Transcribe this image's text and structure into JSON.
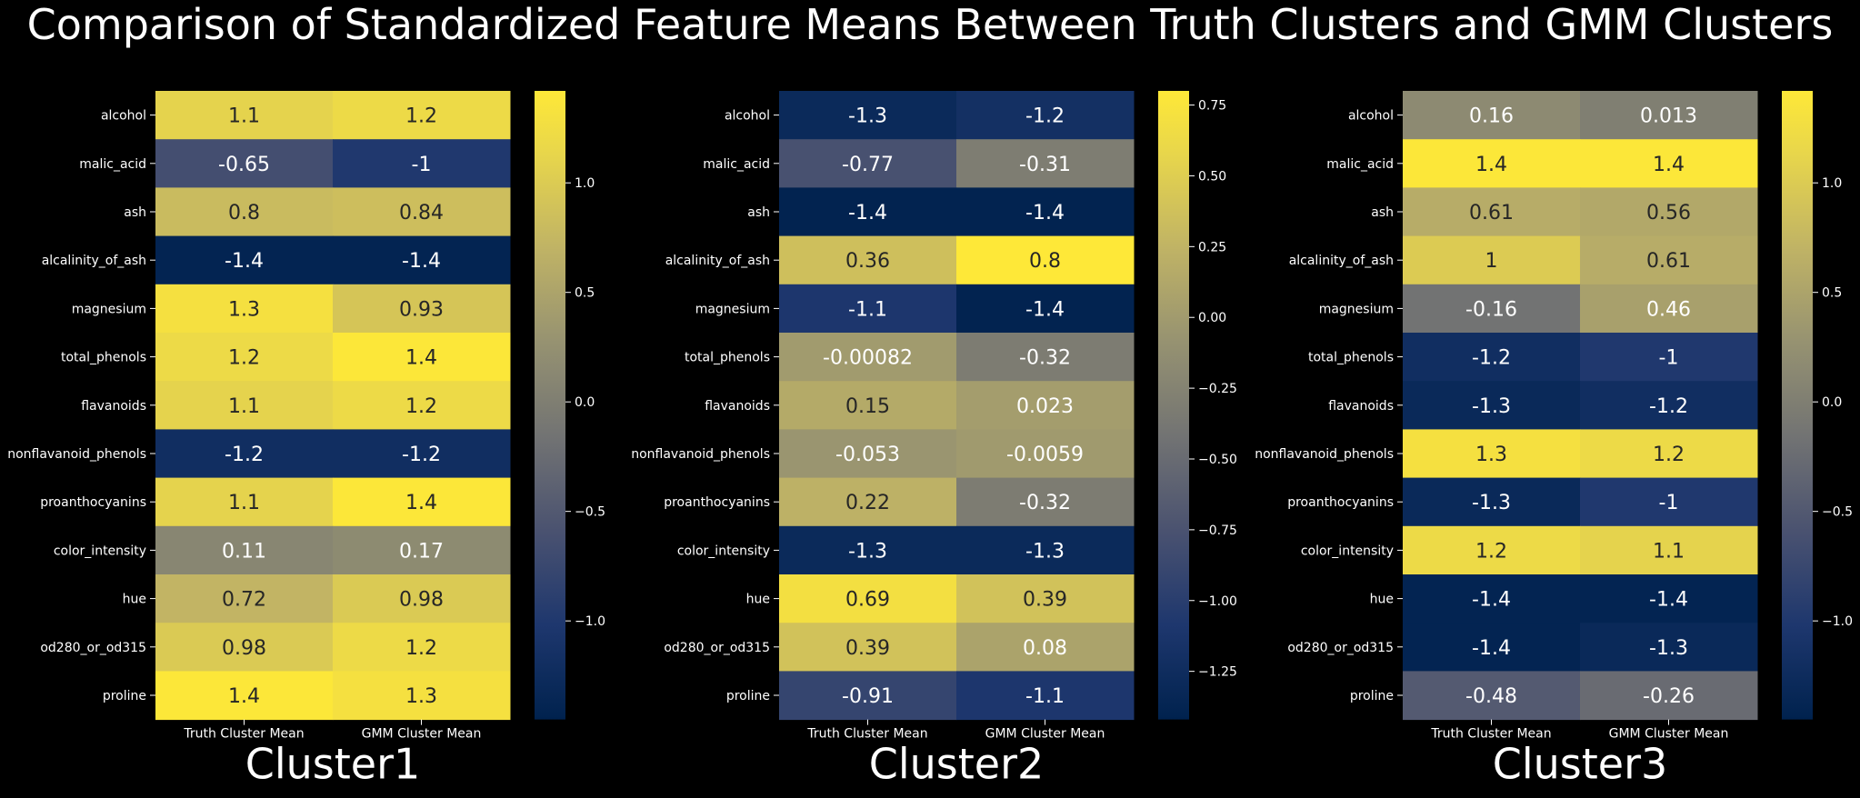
{
  "chart_data": {
    "type": "heatmap",
    "title": "Comparison of Standardized Feature Means Between Truth Clusters and GMM Clusters",
    "colormap": "cividis",
    "background": "#000000",
    "columns": [
      "Truth Cluster Mean",
      "GMM Cluster Mean"
    ],
    "rows": [
      "alcohol",
      "malic_acid",
      "ash",
      "alcalinity_of_ash",
      "magnesium",
      "total_phenols",
      "flavanoids",
      "nonflavanoid_phenols",
      "proanthocyanins",
      "color_intensity",
      "hue",
      "od280_or_od315",
      "proline"
    ],
    "panels": [
      {
        "xlabel": "Cluster1",
        "values": [
          [
            1.1,
            1.2
          ],
          [
            -0.65,
            -1
          ],
          [
            0.8,
            0.84
          ],
          [
            -1.4,
            -1.4
          ],
          [
            1.3,
            0.93
          ],
          [
            1.2,
            1.4
          ],
          [
            1.1,
            1.2
          ],
          [
            -1.2,
            -1.2
          ],
          [
            1.1,
            1.4
          ],
          [
            0.11,
            0.17
          ],
          [
            0.72,
            0.98
          ],
          [
            0.98,
            1.2
          ],
          [
            1.4,
            1.3
          ]
        ],
        "labels": [
          [
            "1.1",
            "1.2"
          ],
          [
            "-0.65",
            "-1"
          ],
          [
            "0.8",
            "0.84"
          ],
          [
            "-1.4",
            "-1.4"
          ],
          [
            "1.3",
            "0.93"
          ],
          [
            "1.2",
            "1.4"
          ],
          [
            "1.1",
            "1.2"
          ],
          [
            "-1.2",
            "-1.2"
          ],
          [
            "1.1",
            "1.4"
          ],
          [
            "0.11",
            "0.17"
          ],
          [
            "0.72",
            "0.98"
          ],
          [
            "0.98",
            "1.2"
          ],
          [
            "1.4",
            "1.3"
          ]
        ],
        "vmin": -1.45,
        "vmax": 1.42,
        "colorbar_ticks": [
          -1.0,
          -0.5,
          0.0,
          0.5,
          1.0
        ],
        "colorbar_tick_labels": [
          "−1.0",
          "−0.5",
          "0.0",
          "0.5",
          "1.0"
        ]
      },
      {
        "xlabel": "Cluster2",
        "values": [
          [
            -1.3,
            -1.2
          ],
          [
            -0.77,
            -0.31
          ],
          [
            -1.4,
            -1.4
          ],
          [
            0.36,
            0.8
          ],
          [
            -1.1,
            -1.4
          ],
          [
            -0.00082,
            -0.32
          ],
          [
            0.15,
            0.023
          ],
          [
            -0.053,
            -0.0059
          ],
          [
            0.22,
            -0.32
          ],
          [
            -1.3,
            -1.3
          ],
          [
            0.69,
            0.39
          ],
          [
            0.39,
            0.08
          ],
          [
            -0.91,
            -1.1
          ]
        ],
        "labels": [
          [
            "-1.3",
            "-1.2"
          ],
          [
            "-0.77",
            "-0.31"
          ],
          [
            "-1.4",
            "-1.4"
          ],
          [
            "0.36",
            "0.8"
          ],
          [
            "-1.1",
            "-1.4"
          ],
          [
            "-0.00082",
            "-0.32"
          ],
          [
            "0.15",
            "0.023"
          ],
          [
            "-0.053",
            "-0.0059"
          ],
          [
            "0.22",
            "-0.32"
          ],
          [
            "-1.3",
            "-1.3"
          ],
          [
            "0.69",
            "0.39"
          ],
          [
            "0.39",
            "0.08"
          ],
          [
            "-0.91",
            "-1.1"
          ]
        ],
        "vmin": -1.42,
        "vmax": 0.8,
        "colorbar_ticks": [
          -1.25,
          -1.0,
          -0.75,
          -0.5,
          -0.25,
          0.0,
          0.25,
          0.5,
          0.75
        ],
        "colorbar_tick_labels": [
          "−1.25",
          "−1.00",
          "−0.75",
          "−0.50",
          "−0.25",
          "0.00",
          "0.25",
          "0.50",
          "0.75"
        ]
      },
      {
        "xlabel": "Cluster3",
        "values": [
          [
            0.16,
            0.013
          ],
          [
            1.4,
            1.4
          ],
          [
            0.61,
            0.56
          ],
          [
            1,
            0.61
          ],
          [
            -0.16,
            0.46
          ],
          [
            -1.2,
            -1
          ],
          [
            -1.3,
            -1.2
          ],
          [
            1.3,
            1.2
          ],
          [
            -1.3,
            -1
          ],
          [
            1.2,
            1.1
          ],
          [
            -1.4,
            -1.4
          ],
          [
            -1.4,
            -1.3
          ],
          [
            -0.48,
            -0.26
          ]
        ],
        "labels": [
          [
            "0.16",
            "0.013"
          ],
          [
            "1.4",
            "1.4"
          ],
          [
            "0.61",
            "0.56"
          ],
          [
            "1",
            "0.61"
          ],
          [
            "-0.16",
            "0.46"
          ],
          [
            "-1.2",
            "-1"
          ],
          [
            "-1.3",
            "-1.2"
          ],
          [
            "1.3",
            "1.2"
          ],
          [
            "-1.3",
            "-1"
          ],
          [
            "1.2",
            "1.1"
          ],
          [
            "-1.4",
            "-1.4"
          ],
          [
            "-1.4",
            "-1.3"
          ],
          [
            "-0.48",
            "-0.26"
          ]
        ],
        "vmin": -1.45,
        "vmax": 1.42,
        "colorbar_ticks": [
          -1.0,
          -0.5,
          0.0,
          0.5,
          1.0
        ],
        "colorbar_tick_labels": [
          "−1.0",
          "−0.5",
          "0.0",
          "0.5",
          "1.0"
        ]
      }
    ]
  }
}
